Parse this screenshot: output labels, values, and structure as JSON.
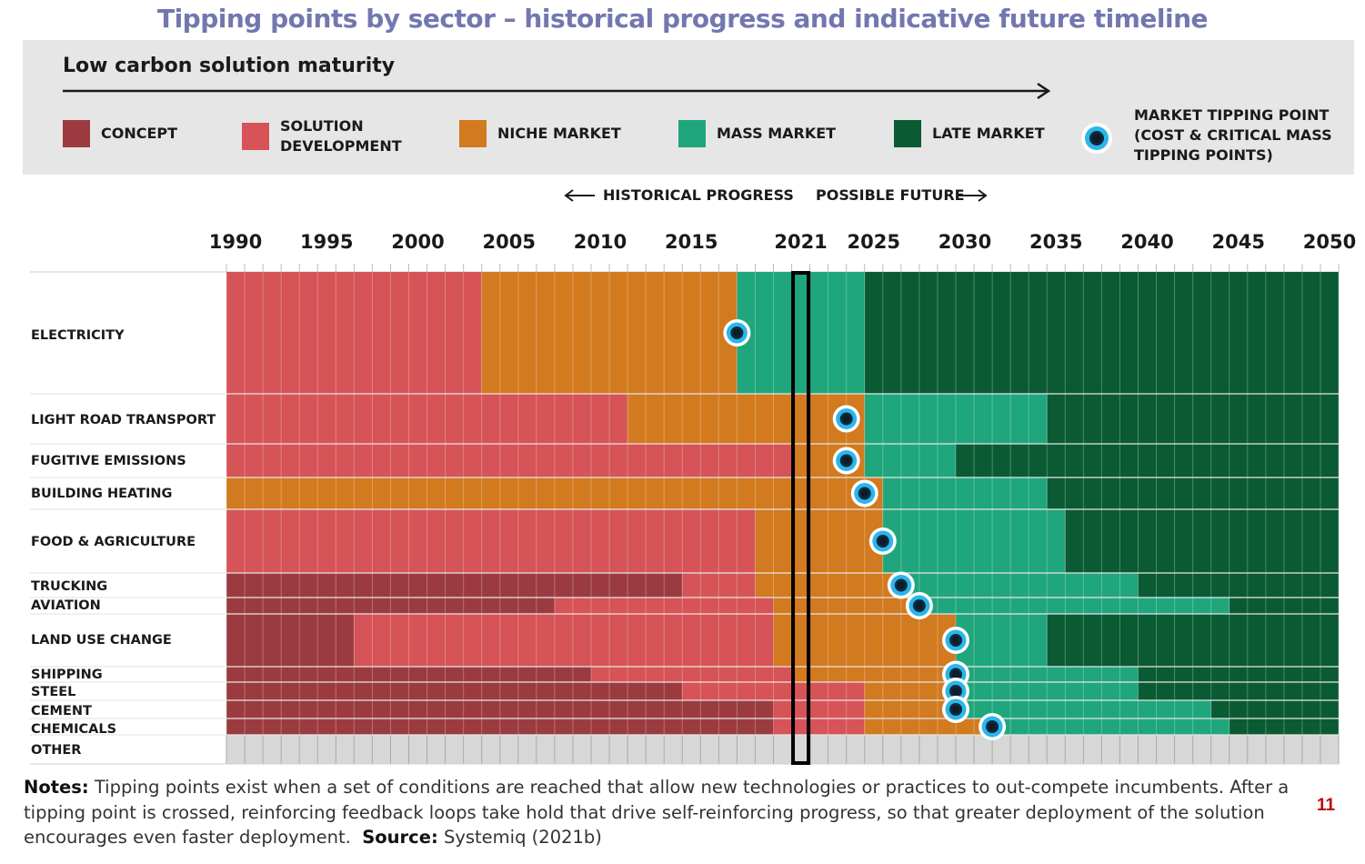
{
  "title": "Tipping points by sector – historical progress and indicative future timeline",
  "legend": {
    "maturity_title": "Low carbon solution maturity",
    "items": [
      {
        "key": "concept",
        "label": "CONCEPT",
        "color": "#9b3b40"
      },
      {
        "key": "solution",
        "label": "SOLUTION DEVELOPMENT",
        "color": "#d65357"
      },
      {
        "key": "niche",
        "label": "NICHE MARKET",
        "color": "#d27a1f"
      },
      {
        "key": "mass",
        "label": "MASS MARKET",
        "color": "#1fa67c"
      },
      {
        "key": "late",
        "label": "LATE MARKET",
        "color": "#0a5a34"
      }
    ],
    "tipping_point_label": "MARKET TIPPING POINT (COST & CRITICAL MASS TIPPING POINTS)"
  },
  "historical_label": "HISTORICAL PROGRESS",
  "future_label": "POSSIBLE FUTURE",
  "notes": {
    "notes_label": "Notes:",
    "notes_text": " Tipping points exist when a set of conditions are reached that allow new technologies or practices to out-compete incumbents. After a tipping point is crossed, reinforcing feedback loops take hold that drive self-reinforcing progress, so that greater deployment of the solution encourages even faster deployment.",
    "source_label": "Source:",
    "source_text": " Systemiq (2021b)"
  },
  "page_number": "11",
  "chart_data": {
    "type": "table",
    "year_start": 1990,
    "year_end": 2050,
    "current_year_marker": 2021,
    "ticks": [
      1990,
      1995,
      2000,
      2005,
      2010,
      2015,
      2021,
      2025,
      2030,
      2035,
      2040,
      2045,
      2050
    ],
    "stage_colors": {
      "concept": "#9b3b40",
      "solution": "#d65357",
      "niche": "#d27a1f",
      "mass": "#1fa67c",
      "late": "#0a5a34",
      "other": "#d7d7d7"
    },
    "sectors": [
      {
        "name": "ELECTRICITY",
        "tipping_point": 2018,
        "stages": [
          [
            "solution",
            1990,
            2004
          ],
          [
            "niche",
            2004,
            2018
          ],
          [
            "mass",
            2018,
            2025
          ],
          [
            "late",
            2025,
            2051
          ]
        ]
      },
      {
        "name": "LIGHT ROAD TRANSPORT",
        "tipping_point": 2024,
        "stages": [
          [
            "solution",
            1990,
            2012
          ],
          [
            "niche",
            2012,
            2025
          ],
          [
            "mass",
            2025,
            2035
          ],
          [
            "late",
            2035,
            2051
          ]
        ]
      },
      {
        "name": "FUGITIVE EMISSIONS",
        "tipping_point": 2024,
        "stages": [
          [
            "solution",
            1990,
            2021
          ],
          [
            "niche",
            2021,
            2025
          ],
          [
            "mass",
            2025,
            2030
          ],
          [
            "late",
            2030,
            2051
          ]
        ]
      },
      {
        "name": "BUILDING HEATING",
        "tipping_point": 2025,
        "stages": [
          [
            "niche",
            1990,
            2026
          ],
          [
            "mass",
            2026,
            2035
          ],
          [
            "late",
            2035,
            2051
          ]
        ]
      },
      {
        "name": "FOOD & AGRICULTURE",
        "tipping_point": 2026,
        "stages": [
          [
            "solution",
            1990,
            2019
          ],
          [
            "niche",
            2019,
            2026
          ],
          [
            "mass",
            2026,
            2036
          ],
          [
            "late",
            2036,
            2051
          ]
        ]
      },
      {
        "name": "TRUCKING",
        "tipping_point": 2027,
        "stages": [
          [
            "concept",
            1990,
            2015
          ],
          [
            "solution",
            2015,
            2019
          ],
          [
            "niche",
            2019,
            2027
          ],
          [
            "mass",
            2027,
            2040
          ],
          [
            "late",
            2040,
            2051
          ]
        ]
      },
      {
        "name": "AVIATION",
        "tipping_point": 2028,
        "stages": [
          [
            "concept",
            1990,
            2008
          ],
          [
            "solution",
            2008,
            2020
          ],
          [
            "niche",
            2020,
            2028
          ],
          [
            "mass",
            2028,
            2045
          ],
          [
            "late",
            2045,
            2051
          ]
        ]
      },
      {
        "name": "LAND USE CHANGE",
        "tipping_point": 2030,
        "stages": [
          [
            "concept",
            1990,
            1997
          ],
          [
            "solution",
            1997,
            2020
          ],
          [
            "niche",
            2020,
            2030
          ],
          [
            "mass",
            2030,
            2035
          ],
          [
            "late",
            2035,
            2051
          ]
        ]
      },
      {
        "name": "SHIPPING",
        "tipping_point": 2030,
        "stages": [
          [
            "concept",
            1990,
            2010
          ],
          [
            "solution",
            2010,
            2021
          ],
          [
            "niche",
            2021,
            2030
          ],
          [
            "mass",
            2030,
            2040
          ],
          [
            "late",
            2040,
            2051
          ]
        ]
      },
      {
        "name": "STEEL",
        "tipping_point": 2030,
        "stages": [
          [
            "concept",
            1990,
            2015
          ],
          [
            "solution",
            2015,
            2025
          ],
          [
            "niche",
            2025,
            2030
          ],
          [
            "mass",
            2030,
            2040
          ],
          [
            "late",
            2040,
            2051
          ]
        ]
      },
      {
        "name": "CEMENT",
        "tipping_point": 2030,
        "stages": [
          [
            "concept",
            1990,
            2020
          ],
          [
            "solution",
            2020,
            2025
          ],
          [
            "niche",
            2025,
            2030
          ],
          [
            "mass",
            2030,
            2044
          ],
          [
            "late",
            2044,
            2051
          ]
        ]
      },
      {
        "name": "CHEMICALS",
        "tipping_point": 2032,
        "stages": [
          [
            "concept",
            1990,
            2020
          ],
          [
            "solution",
            2020,
            2025
          ],
          [
            "niche",
            2025,
            2032
          ],
          [
            "mass",
            2032,
            2045
          ],
          [
            "late",
            2045,
            2051
          ]
        ]
      },
      {
        "name": "OTHER",
        "tipping_point": null,
        "stages": [
          [
            "other",
            1990,
            2051
          ]
        ]
      }
    ]
  }
}
